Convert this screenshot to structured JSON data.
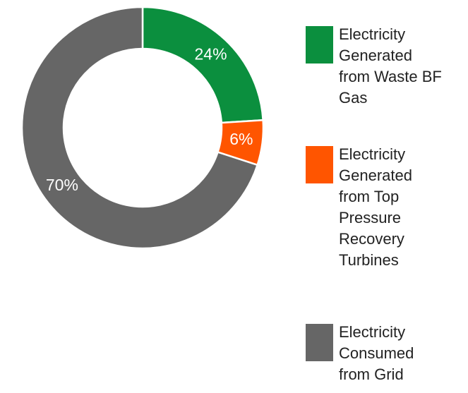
{
  "chart_data": {
    "type": "donut",
    "categories": [
      "Electricity Generated from Waste BF Gas",
      "Electricity Generated from Top Pressure Recovery Turbines",
      "Electricity Consumed from Grid"
    ],
    "values": [
      24,
      6,
      70
    ],
    "value_labels": [
      "24%",
      "6%",
      "70%"
    ],
    "colors": [
      "#0b8f3e",
      "#ff5500",
      "#666666"
    ],
    "legend": "right"
  }
}
